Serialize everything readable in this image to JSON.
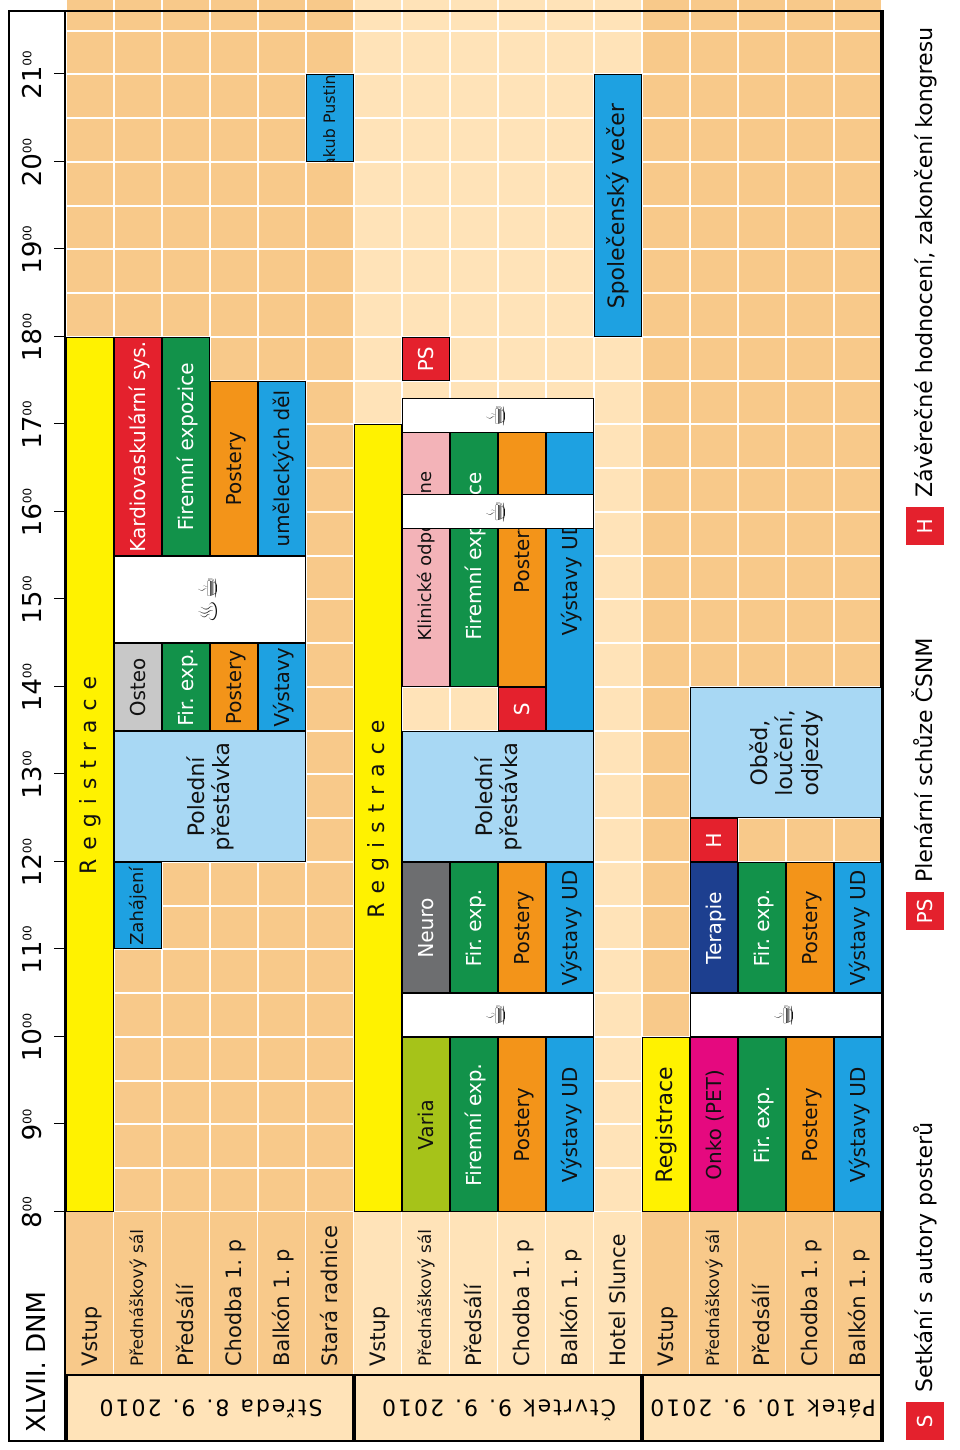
{
  "header": {
    "title": "XLVII. DNM"
  },
  "times": [
    "8",
    "9",
    "10",
    "11",
    "12",
    "13",
    "14",
    "15",
    "16",
    "17",
    "18",
    "19",
    "20",
    "21"
  ],
  "time_sup": "00",
  "days": [
    {
      "label": "Středa  8. 9. 2010",
      "rows": [
        "Vstup",
        "Přednáškový sál",
        "Předsálí",
        "Chodba 1. p",
        "Balkón 1. p",
        "Stará radnice"
      ]
    },
    {
      "label": "Čtvrtek  9. 9. 2010",
      "rows": [
        "Vstup",
        "Přednáškový sál",
        "Předsálí",
        "Chodba 1. p",
        "Balkón 1. p",
        "Hotel Slunce"
      ]
    },
    {
      "label": "Pátek  10. 9. 2010",
      "rows": [
        "Vstup",
        "Přednáškový sál",
        "Předsálí",
        "Chodba 1. p",
        "Balkón 1. p"
      ]
    }
  ],
  "events": {
    "wed_registrace": "R e g i s t r a c e",
    "wed_zahajeni": "Zahájení",
    "wed_poledni": "Polední přestávka",
    "wed_osteo": "Osteo",
    "wed_kardio": "Kardiovaskulární sys.",
    "wed_firexp": "Fir. exp.",
    "wed_firemni": "Firemní expozice",
    "wed_postery1": "Postery",
    "wed_postery2": "Postery",
    "wed_vystavy": "Výstavy",
    "wed_umeleckych": "uměleckých děl",
    "wed_pustina": "Jakub Pustina",
    "thu_registrace": "R e g i s t r a c e",
    "thu_varia": "Varia",
    "thu_neuro": "Neuro",
    "thu_klinicke": "Klinické odpoledne",
    "thu_ps": "PS",
    "thu_firemni1": "Firemní exp.",
    "thu_firexp": "Fir. exp.",
    "thu_firemni2": "Firemní expozice",
    "thu_postery1": "Postery",
    "thu_postery2": "Postery",
    "thu_postery3": "Postery",
    "thu_s": "S",
    "thu_vystavy1": "Výstavy UD",
    "thu_vystavy2": "Výstavy UD",
    "thu_vystavy3": "Výstavy UD",
    "thu_poledni": "Polední přestávka",
    "thu_vecer": "Společenský večer",
    "fri_registrace": "Registrace",
    "fri_onko": "Onko (PET)",
    "fri_terapie": "Terapie",
    "fri_h": "H",
    "fri_firexp1": "Fir. exp.",
    "fri_firexp2": "Fir. exp.",
    "fri_postery1": "Postery",
    "fri_postery2": "Postery",
    "fri_vystavy1": "Výstavy UD",
    "fri_vystavy2": "Výstavy UD",
    "fri_obed": "Oběd, loučení, odjezdy"
  },
  "legend": [
    {
      "key": "S",
      "text": "Setkání s autory posterů"
    },
    {
      "key": "PS",
      "text": "Plenární schůze ČSNM"
    },
    {
      "key": "H",
      "text": "Závěrečné hodnocení, zakončení kongresu"
    }
  ],
  "colors": {
    "grid_cell": "#f8c98a",
    "grid_cell_light": "#ffe3b8",
    "yellow": "#fff200",
    "olive": "#a6c319",
    "gray_dark": "#6d6e70",
    "gray_light": "#c8c8c8",
    "light_blue": "#a8d8f4",
    "red": "#e4212d",
    "pink": "#f3b3b8",
    "green": "#12924a",
    "orange": "#f39419",
    "blue": "#1ea1e1",
    "navy": "#1d3f8f",
    "magenta": "#e5097f"
  },
  "icons": [
    "coffee-cup-icon"
  ]
}
